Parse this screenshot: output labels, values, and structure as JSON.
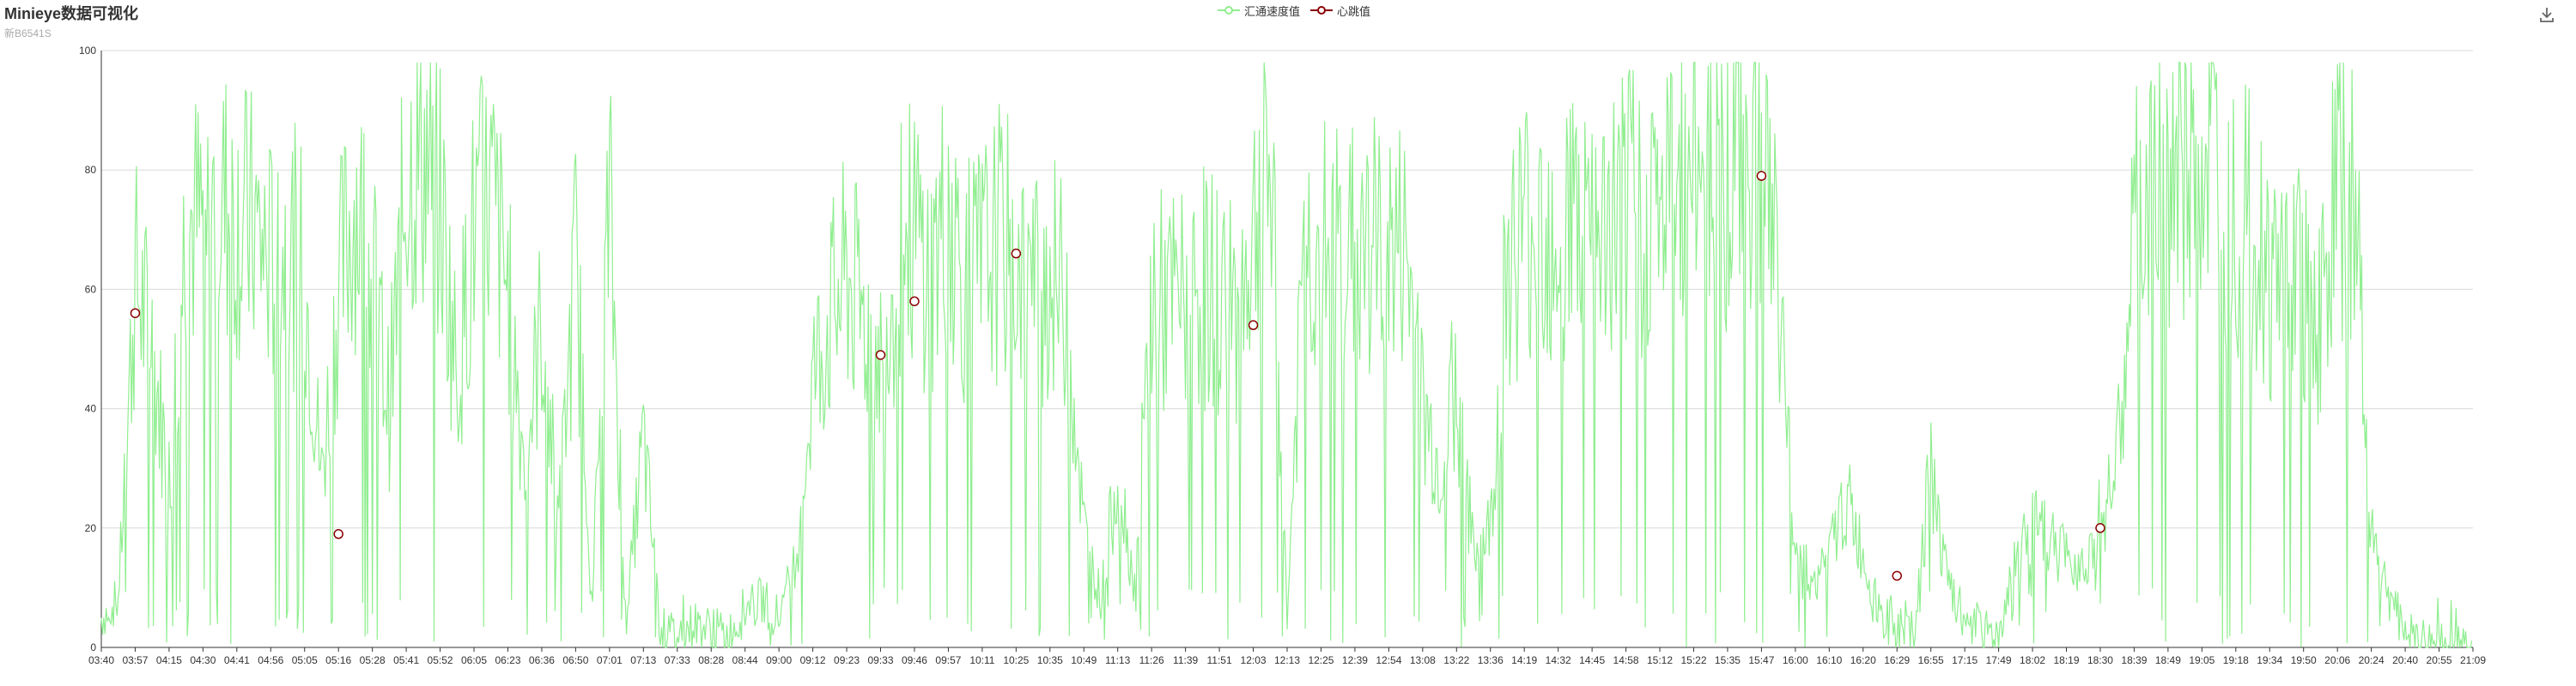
{
  "header": {
    "title": "Minieye数据可视化",
    "subtitle": "新B6541S"
  },
  "toolbar": {
    "download_icon": "download-icon"
  },
  "colors": {
    "speed": "#90ee90",
    "heartbeat": "#8b0000",
    "grid": "#d9d9d9",
    "axis": "#333333"
  },
  "chart_data": {
    "type": "line",
    "title": "Minieye数据可视化",
    "subtitle": "新B6541S",
    "legend": [
      "汇通速度值",
      "心跳值"
    ],
    "legend_position": "top-center",
    "ylim": [
      0,
      100
    ],
    "yticks": [
      0,
      20,
      40,
      60,
      80,
      100
    ],
    "grid": true,
    "x_ticks": [
      "03:40",
      "03:57",
      "04:15",
      "04:30",
      "04:41",
      "04:56",
      "05:05",
      "05:16",
      "05:28",
      "05:41",
      "05:52",
      "06:05",
      "06:23",
      "06:36",
      "06:50",
      "07:01",
      "07:13",
      "07:33",
      "08:28",
      "08:44",
      "09:00",
      "09:12",
      "09:23",
      "09:33",
      "09:46",
      "09:57",
      "10:11",
      "10:25",
      "10:35",
      "10:49",
      "11:13",
      "11:26",
      "11:39",
      "11:51",
      "12:03",
      "12:13",
      "12:25",
      "12:39",
      "12:54",
      "13:08",
      "13:22",
      "13:36",
      "14:19",
      "14:32",
      "14:45",
      "14:58",
      "15:12",
      "15:22",
      "15:35",
      "15:47",
      "16:00",
      "16:10",
      "16:20",
      "16:29",
      "16:55",
      "17:15",
      "17:49",
      "18:02",
      "18:19",
      "18:30",
      "18:39",
      "18:49",
      "19:05",
      "19:18",
      "19:34",
      "19:50",
      "20:06",
      "20:24",
      "20:40",
      "20:55",
      "21:09"
    ],
    "series": [
      {
        "name": "汇通速度值",
        "color": "#90ee90",
        "segment_levels": [
          [
            0,
            5
          ],
          [
            0.5,
            8
          ],
          [
            1,
            62
          ],
          [
            1.5,
            50
          ],
          [
            2,
            28
          ],
          [
            2.5,
            72
          ],
          [
            3,
            70
          ],
          [
            3.5,
            75
          ],
          [
            4,
            72
          ],
          [
            4.5,
            70
          ],
          [
            5,
            64
          ],
          [
            5.5,
            67
          ],
          [
            6,
            63
          ],
          [
            6.5,
            28
          ],
          [
            7,
            60
          ],
          [
            7.5,
            75
          ],
          [
            8,
            62
          ],
          [
            8.5,
            40
          ],
          [
            9,
            80
          ],
          [
            9.5,
            83
          ],
          [
            10,
            75
          ],
          [
            10.5,
            45
          ],
          [
            11,
            70
          ],
          [
            11.5,
            75
          ],
          [
            12,
            60
          ],
          [
            12.5,
            30
          ],
          [
            13,
            55
          ],
          [
            13.5,
            20
          ],
          [
            14,
            65
          ],
          [
            14.5,
            10
          ],
          [
            15,
            75
          ],
          [
            15.5,
            5
          ],
          [
            16,
            35
          ],
          [
            16.5,
            3
          ],
          [
            17,
            2
          ],
          [
            17.5,
            4
          ],
          [
            18,
            3
          ],
          [
            18.5,
            2
          ],
          [
            19,
            6
          ],
          [
            19.5,
            8
          ],
          [
            20,
            5
          ],
          [
            20.5,
            15
          ],
          [
            21,
            45
          ],
          [
            21.5,
            55
          ],
          [
            22,
            62
          ],
          [
            22.5,
            55
          ],
          [
            23,
            48
          ],
          [
            23.5,
            65
          ],
          [
            24,
            70
          ],
          [
            24.5,
            62
          ],
          [
            25,
            75
          ],
          [
            25.5,
            60
          ],
          [
            26,
            64
          ],
          [
            26.5,
            68
          ],
          [
            27,
            65
          ],
          [
            27.5,
            60
          ],
          [
            28,
            62
          ],
          [
            28.5,
            58
          ],
          [
            29,
            20
          ],
          [
            29.5,
            8
          ],
          [
            30,
            30
          ],
          [
            30.5,
            10
          ],
          [
            31,
            58
          ],
          [
            31.5,
            57
          ],
          [
            32,
            58
          ],
          [
            32.5,
            60
          ],
          [
            33,
            59
          ],
          [
            33.5,
            55
          ],
          [
            34,
            70
          ],
          [
            34.5,
            82
          ],
          [
            35,
            5
          ],
          [
            35.5,
            67
          ],
          [
            36,
            66
          ],
          [
            36.5,
            67
          ],
          [
            37,
            66
          ],
          [
            37.5,
            67
          ],
          [
            38,
            66
          ],
          [
            38.5,
            66
          ],
          [
            39,
            40
          ],
          [
            39.5,
            30
          ],
          [
            40,
            45
          ],
          [
            40.5,
            15
          ],
          [
            41,
            20
          ],
          [
            41.5,
            65
          ],
          [
            42,
            70
          ],
          [
            42.5,
            72
          ],
          [
            43,
            70
          ],
          [
            43.5,
            73
          ],
          [
            44,
            65
          ],
          [
            44.5,
            70
          ],
          [
            45,
            72
          ],
          [
            45.5,
            74
          ],
          [
            46,
            73
          ],
          [
            46.5,
            76
          ],
          [
            47,
            82
          ],
          [
            47.5,
            85
          ],
          [
            48,
            80
          ],
          [
            48.5,
            84
          ],
          [
            49,
            87
          ],
          [
            49.5,
            60
          ],
          [
            50,
            20
          ],
          [
            50.5,
            10
          ],
          [
            51,
            15
          ],
          [
            51.5,
            25
          ],
          [
            52,
            15
          ],
          [
            52.5,
            5
          ],
          [
            53,
            3
          ],
          [
            53.5,
            2
          ],
          [
            54,
            30
          ],
          [
            54.5,
            10
          ],
          [
            55,
            5
          ],
          [
            55.5,
            3
          ],
          [
            56,
            2
          ],
          [
            56.5,
            15
          ],
          [
            57,
            20
          ],
          [
            57.5,
            18
          ],
          [
            58,
            15
          ],
          [
            58.5,
            14
          ],
          [
            59,
            22
          ],
          [
            59.5,
            30
          ],
          [
            60,
            70
          ],
          [
            60.5,
            75
          ],
          [
            61,
            80
          ],
          [
            61.5,
            78
          ],
          [
            62,
            82
          ],
          [
            62.5,
            78
          ],
          [
            63,
            75
          ],
          [
            63.5,
            70
          ],
          [
            64,
            60
          ],
          [
            64.5,
            65
          ],
          [
            65,
            60
          ],
          [
            65.5,
            55
          ],
          [
            66,
            78
          ],
          [
            66.5,
            75
          ],
          [
            67,
            20
          ],
          [
            67.5,
            10
          ],
          [
            68,
            2
          ],
          [
            68.5,
            1
          ],
          [
            69,
            0
          ],
          [
            69.5,
            0
          ],
          [
            70,
            0
          ]
        ]
      },
      {
        "name": "心跳值",
        "color": "#8b0000",
        "points": [
          {
            "x": 1.0,
            "y": 56
          },
          {
            "x": 7.0,
            "y": 19
          },
          {
            "x": 23.0,
            "y": 49
          },
          {
            "x": 24.0,
            "y": 58
          },
          {
            "x": 27.0,
            "y": 66
          },
          {
            "x": 34.0,
            "y": 54
          },
          {
            "x": 49.0,
            "y": 79
          },
          {
            "x": 53.0,
            "y": 12
          },
          {
            "x": 59.0,
            "y": 20
          }
        ]
      }
    ]
  }
}
